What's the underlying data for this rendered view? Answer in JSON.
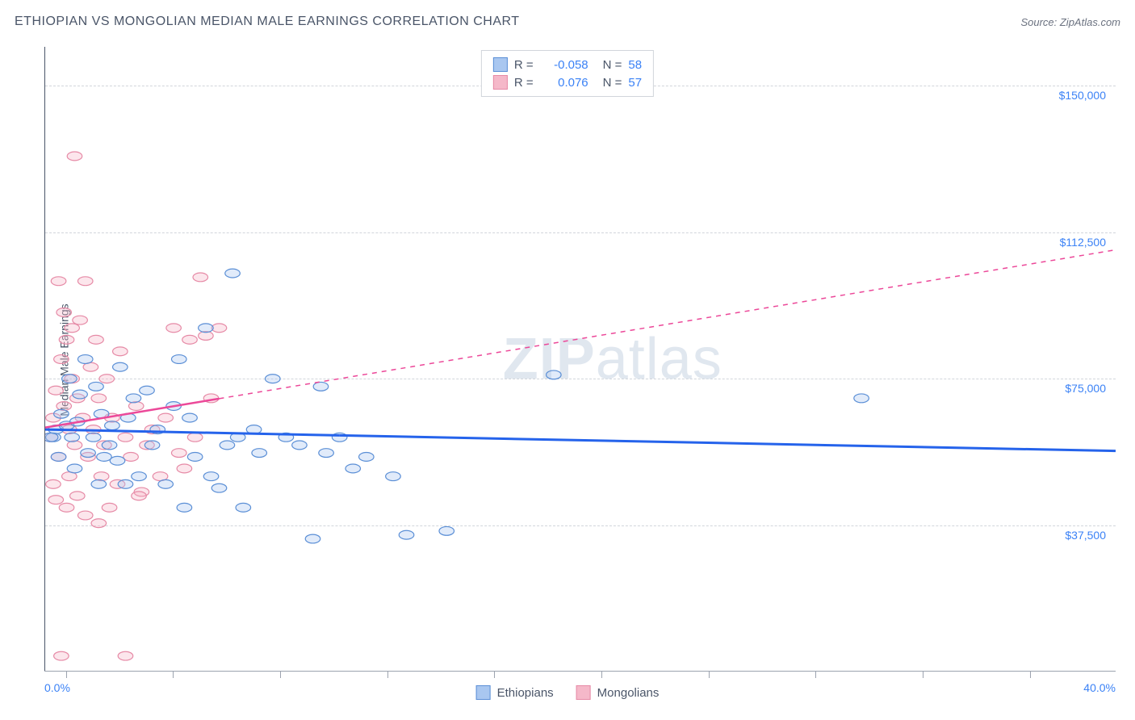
{
  "title": "ETHIOPIAN VS MONGOLIAN MEDIAN MALE EARNINGS CORRELATION CHART",
  "source": "Source: ZipAtlas.com",
  "y_axis_label": "Median Male Earnings",
  "watermark_bold": "ZIP",
  "watermark_rest": "atlas",
  "chart": {
    "type": "scatter",
    "xlim": [
      0,
      40
    ],
    "ylim": [
      0,
      160000
    ],
    "x_tick_labels": {
      "min": "0.0%",
      "max": "40.0%"
    },
    "x_tick_positions_pct": [
      2,
      12,
      22,
      32,
      42,
      52,
      62,
      72,
      82,
      92
    ],
    "y_gridlines": [
      {
        "value": 37500,
        "label": "$37,500"
      },
      {
        "value": 75000,
        "label": "$75,000"
      },
      {
        "value": 112500,
        "label": "$112,500"
      },
      {
        "value": 150000,
        "label": "$150,000"
      }
    ],
    "background_color": "#ffffff",
    "grid_color": "#d1d5db",
    "axis_color": "#4a5568",
    "tick_label_color": "#3b82f6",
    "marker_radius": 7,
    "marker_stroke_width": 1.2,
    "marker_fill_opacity": 0.35,
    "series": [
      {
        "name": "Ethiopians",
        "color_fill": "#a9c7f0",
        "color_stroke": "#5b8fd6",
        "r_value": "-0.058",
        "n_value": "58",
        "trend": {
          "solid_from_x": 0,
          "solid_to_x": 11,
          "y_at_x0": 62000,
          "y_at_xmax": 56500,
          "line_color": "#2563eb",
          "line_width": 3
        },
        "points": [
          [
            0.3,
            60000
          ],
          [
            0.4,
            62000
          ],
          [
            0.5,
            55000
          ],
          [
            0.6,
            66000
          ],
          [
            0.8,
            63000
          ],
          [
            0.9,
            75000
          ],
          [
            1.0,
            60000
          ],
          [
            1.1,
            52000
          ],
          [
            1.2,
            64000
          ],
          [
            1.3,
            71000
          ],
          [
            1.5,
            80000
          ],
          [
            1.6,
            56000
          ],
          [
            1.8,
            60000
          ],
          [
            1.9,
            73000
          ],
          [
            2.0,
            48000
          ],
          [
            2.1,
            66000
          ],
          [
            2.2,
            55000
          ],
          [
            2.4,
            58000
          ],
          [
            2.5,
            63000
          ],
          [
            2.7,
            54000
          ],
          [
            2.8,
            78000
          ],
          [
            3.0,
            48000
          ],
          [
            3.1,
            65000
          ],
          [
            3.3,
            70000
          ],
          [
            3.5,
            50000
          ],
          [
            3.8,
            72000
          ],
          [
            4.0,
            58000
          ],
          [
            4.2,
            62000
          ],
          [
            4.5,
            48000
          ],
          [
            4.8,
            68000
          ],
          [
            5.0,
            80000
          ],
          [
            5.2,
            42000
          ],
          [
            5.4,
            65000
          ],
          [
            5.6,
            55000
          ],
          [
            6.0,
            88000
          ],
          [
            6.2,
            50000
          ],
          [
            6.5,
            47000
          ],
          [
            6.8,
            58000
          ],
          [
            7.0,
            102000
          ],
          [
            7.2,
            60000
          ],
          [
            7.4,
            42000
          ],
          [
            7.8,
            62000
          ],
          [
            8.0,
            56000
          ],
          [
            8.5,
            75000
          ],
          [
            9.0,
            60000
          ],
          [
            9.5,
            58000
          ],
          [
            10.0,
            34000
          ],
          [
            10.3,
            73000
          ],
          [
            10.5,
            56000
          ],
          [
            11.0,
            60000
          ],
          [
            11.5,
            52000
          ],
          [
            12.0,
            55000
          ],
          [
            13.0,
            50000
          ],
          [
            13.5,
            35000
          ],
          [
            15.0,
            36000
          ],
          [
            19.0,
            76000
          ],
          [
            30.5,
            70000
          ],
          [
            0.2,
            60000
          ]
        ]
      },
      {
        "name": "Mongolians",
        "color_fill": "#f5b8c9",
        "color_stroke": "#e68aa6",
        "r_value": "0.076",
        "n_value": "57",
        "trend": {
          "solid_from_x": 0,
          "solid_to_x": 6.5,
          "y_at_x0": 62500,
          "y_at_xmax": 108000,
          "line_color": "#ec4899",
          "line_width": 2.5
        },
        "points": [
          [
            0.2,
            60000
          ],
          [
            0.3,
            65000
          ],
          [
            0.4,
            72000
          ],
          [
            0.5,
            55000
          ],
          [
            0.6,
            80000
          ],
          [
            0.7,
            68000
          ],
          [
            0.8,
            85000
          ],
          [
            0.9,
            62000
          ],
          [
            1.0,
            75000
          ],
          [
            1.1,
            58000
          ],
          [
            1.2,
            70000
          ],
          [
            1.3,
            90000
          ],
          [
            1.4,
            65000
          ],
          [
            1.5,
            100000
          ],
          [
            1.6,
            55000
          ],
          [
            1.7,
            78000
          ],
          [
            1.8,
            62000
          ],
          [
            1.9,
            85000
          ],
          [
            2.0,
            70000
          ],
          [
            2.1,
            50000
          ],
          [
            2.2,
            58000
          ],
          [
            2.3,
            75000
          ],
          [
            2.5,
            65000
          ],
          [
            2.7,
            48000
          ],
          [
            2.8,
            82000
          ],
          [
            3.0,
            60000
          ],
          [
            3.2,
            55000
          ],
          [
            3.4,
            68000
          ],
          [
            3.6,
            46000
          ],
          [
            3.8,
            58000
          ],
          [
            4.0,
            62000
          ],
          [
            4.3,
            50000
          ],
          [
            4.5,
            65000
          ],
          [
            4.8,
            88000
          ],
          [
            5.0,
            56000
          ],
          [
            5.2,
            52000
          ],
          [
            5.4,
            85000
          ],
          [
            5.6,
            60000
          ],
          [
            5.8,
            101000
          ],
          [
            6.0,
            86000
          ],
          [
            6.2,
            70000
          ],
          [
            6.5,
            88000
          ],
          [
            0.5,
            100000
          ],
          [
            0.7,
            92000
          ],
          [
            1.0,
            88000
          ],
          [
            0.3,
            48000
          ],
          [
            0.4,
            44000
          ],
          [
            0.8,
            42000
          ],
          [
            1.2,
            45000
          ],
          [
            1.5,
            40000
          ],
          [
            2.0,
            38000
          ],
          [
            1.1,
            132000
          ],
          [
            0.6,
            4000
          ],
          [
            3.0,
            4000
          ],
          [
            3.5,
            45000
          ],
          [
            2.4,
            42000
          ],
          [
            0.9,
            50000
          ]
        ]
      }
    ]
  },
  "legend_bottom": [
    {
      "label": "Ethiopians",
      "fill": "#a9c7f0",
      "stroke": "#5b8fd6"
    },
    {
      "label": "Mongolians",
      "fill": "#f5b8c9",
      "stroke": "#e68aa6"
    }
  ]
}
